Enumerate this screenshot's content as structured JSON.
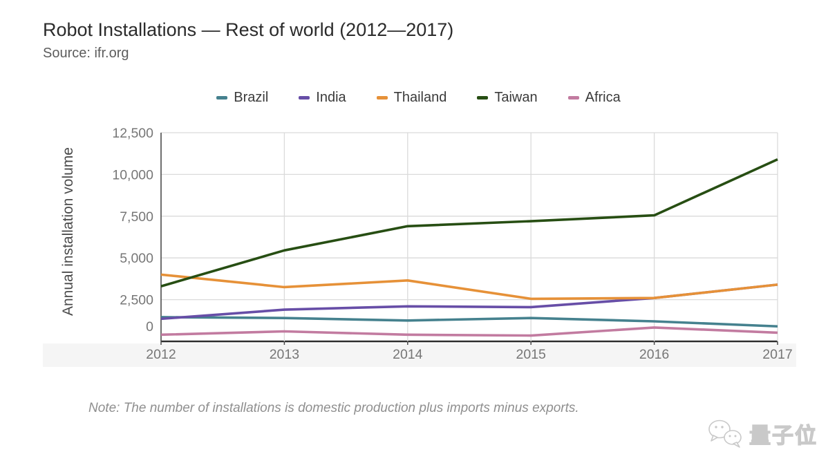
{
  "header": {
    "title": "Robot Installations — Rest of world (2012—2017)",
    "subtitle": "Source: ifr.org"
  },
  "chart_data": {
    "type": "line",
    "title": "Robot Installations — Rest of world (2012—2017)",
    "source": "Source: ifr.org",
    "xlabel": "",
    "ylabel": "Annual installation volume",
    "x": [
      "2012",
      "2013",
      "2014",
      "2015",
      "2016",
      "2017"
    ],
    "series": [
      {
        "name": "Brazil",
        "color": "#45818e",
        "values": [
          1450,
          1400,
          1250,
          1400,
          1200,
          900
        ]
      },
      {
        "name": "India",
        "color": "#674ea7",
        "values": [
          1350,
          1900,
          2100,
          2050,
          2600,
          3400
        ]
      },
      {
        "name": "Thailand",
        "color": "#e69138",
        "values": [
          4000,
          3250,
          3650,
          2550,
          2600,
          3400
        ]
      },
      {
        "name": "Taiwan",
        "color": "#274e13",
        "values": [
          3300,
          5450,
          6900,
          7200,
          7550,
          10900
        ]
      },
      {
        "name": "Africa",
        "color": "#c27ba0",
        "values": [
          400,
          600,
          400,
          350,
          830,
          520
        ]
      }
    ],
    "ylim": [
      0,
      12500
    ],
    "ytick_values": [
      0,
      2500,
      5000,
      7500,
      10000,
      12500
    ],
    "ytick_labels": [
      "0",
      "2,500",
      "5,000",
      "7,500",
      "10,000",
      "12,500"
    ],
    "grid": true,
    "legend_position": "top"
  },
  "note": {
    "text": "Note: The number of installations is domestic production plus imports minus exports."
  },
  "watermark": {
    "text": "量子位"
  },
  "colors": {
    "gridline": "#dadada",
    "baseline": "#2e2e2e",
    "axis_text": "#767676",
    "xlabel_band": "#f5f5f5"
  }
}
